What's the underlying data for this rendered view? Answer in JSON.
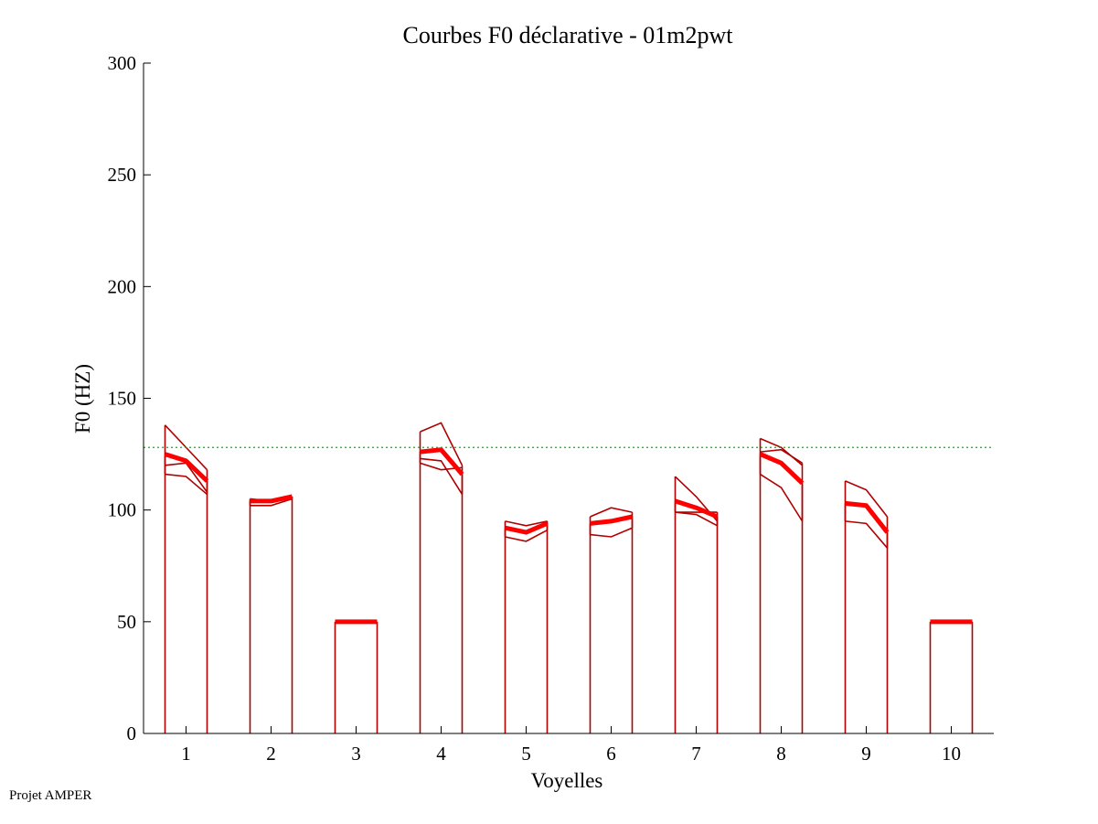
{
  "footer": {
    "note": "Projet AMPER"
  },
  "colors": {
    "bar": "#b00000",
    "mean": "#ff0000",
    "reference": "#00bb00"
  },
  "chart_data": {
    "type": "line",
    "title": "Courbes F0 déclarative - 01m2pwt",
    "xlabel": "Voyelles",
    "ylabel": "F0 (HZ)",
    "ylim": [
      0,
      300
    ],
    "yticks": [
      0,
      50,
      100,
      150,
      200,
      250,
      300
    ],
    "xlim": [
      0.5,
      10.5
    ],
    "categories": [
      "1",
      "2",
      "3",
      "4",
      "5",
      "6",
      "7",
      "8",
      "9",
      "10"
    ],
    "reference_line": 128,
    "grid": false,
    "vowels": [
      {
        "label": "1",
        "mean": [
          125,
          122,
          113
        ],
        "curves": [
          [
            138,
            128,
            118
          ],
          [
            120,
            121,
            108
          ],
          [
            116,
            115,
            107
          ]
        ]
      },
      {
        "label": "2",
        "mean": [
          104,
          104,
          106
        ],
        "curves": [
          [
            105,
            104,
            105
          ],
          [
            102,
            102,
            105
          ]
        ]
      },
      {
        "label": "3",
        "mean": [
          50,
          50,
          50
        ],
        "curves": []
      },
      {
        "label": "4",
        "mean": [
          126,
          127,
          116
        ],
        "curves": [
          [
            135,
            139,
            120
          ],
          [
            121,
            118,
            119
          ],
          [
            123,
            122,
            107
          ]
        ]
      },
      {
        "label": "5",
        "mean": [
          92,
          90,
          94
        ],
        "curves": [
          [
            95,
            93,
            95
          ],
          [
            88,
            86,
            91
          ]
        ]
      },
      {
        "label": "6",
        "mean": [
          94,
          95,
          97
        ],
        "curves": [
          [
            97,
            101,
            99
          ],
          [
            89,
            88,
            92
          ]
        ]
      },
      {
        "label": "7",
        "mean": [
          104,
          101,
          97
        ],
        "curves": [
          [
            115,
            106,
            95
          ],
          [
            99,
            99,
            99
          ],
          [
            99,
            98,
            93
          ]
        ]
      },
      {
        "label": "8",
        "mean": [
          125,
          121,
          112
        ],
        "curves": [
          [
            132,
            128,
            120
          ],
          [
            126,
            127,
            121
          ],
          [
            116,
            110,
            95
          ]
        ]
      },
      {
        "label": "9",
        "mean": [
          103,
          102,
          90
        ],
        "curves": [
          [
            113,
            109,
            97
          ],
          [
            95,
            94,
            83
          ]
        ]
      },
      {
        "label": "10",
        "mean": [
          50,
          50,
          50
        ],
        "curves": []
      }
    ]
  }
}
